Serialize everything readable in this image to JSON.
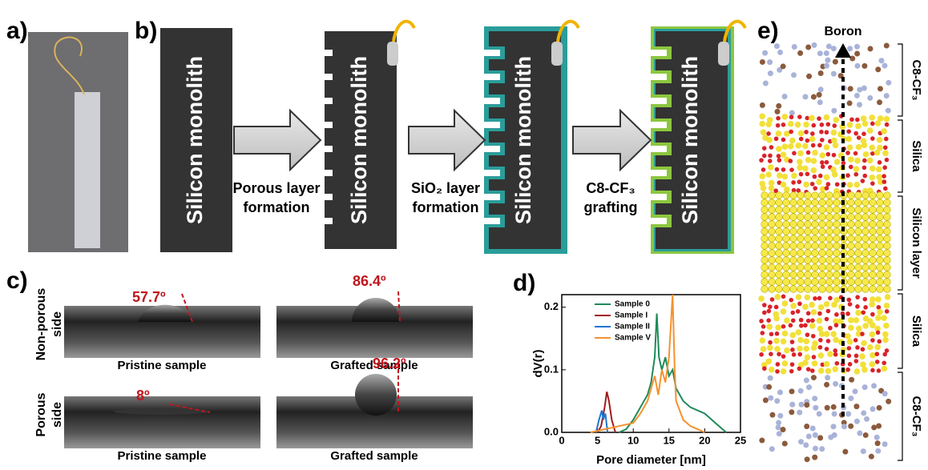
{
  "panels": {
    "a": {
      "label": "a)"
    },
    "b": {
      "label": "b)",
      "monoliths": [
        "Silicon monolith",
        "Silicon monolith",
        "Silicon monolith",
        "Silicon monolith"
      ],
      "steps": [
        [
          "Porous layer",
          "formation"
        ],
        [
          "SiO₂ layer",
          "formation"
        ],
        [
          "C8-CF₃",
          "grafting"
        ]
      ]
    },
    "c": {
      "label": "c)",
      "rows": [
        {
          "side": [
            "Non-porous",
            "side"
          ],
          "images": [
            {
              "angle": "57.7º",
              "caption": "Pristine sample"
            },
            {
              "angle": "86.4º",
              "caption": "Grafted sample"
            }
          ]
        },
        {
          "side": [
            "Porous",
            "side"
          ],
          "images": [
            {
              "angle": "8º",
              "caption": "Pristine sample"
            },
            {
              "angle": "96.2º",
              "caption": "Grafted sample"
            }
          ]
        }
      ]
    },
    "d": {
      "label": "d)",
      "chart": {
        "type": "line",
        "x_label": "Pore diameter  [nm]",
        "y_label": "dV(r)",
        "xlim": [
          0,
          25
        ],
        "ylim": [
          0,
          0.22
        ],
        "xticks": [
          0,
          5,
          10,
          15,
          20,
          25
        ],
        "yticks": [
          {
            "value": 0,
            "label": "0.0"
          },
          {
            "value": 0.1,
            "label": "0.1"
          },
          {
            "value": 0.2,
            "label": "0.2"
          }
        ],
        "series": [
          {
            "name": "Sample 0",
            "color": "#1f8a5a",
            "x": [
              8,
              9,
              10,
              11,
              12,
              12.5,
              13,
              13.3,
              13.6,
              14,
              14.5,
              15,
              15.5,
              16,
              17,
              18,
              19,
              20,
              21,
              22,
              23
            ],
            "values": [
              0,
              0.005,
              0.02,
              0.04,
              0.06,
              0.08,
              0.12,
              0.19,
              0.12,
              0.1,
              0.12,
              0.09,
              0.1,
              0.07,
              0.05,
              0.04,
              0.035,
              0.03,
              0.02,
              0.01,
              0
            ]
          },
          {
            "name": "Sample I",
            "color": "#a31c1c",
            "x": [
              5,
              5.5,
              6,
              6.3,
              6.6,
              7,
              7.5
            ],
            "values": [
              0,
              0.01,
              0.04,
              0.065,
              0.05,
              0.02,
              0
            ]
          },
          {
            "name": "Sample II",
            "color": "#1f77d4",
            "x": [
              4.8,
              5.2,
              5.6,
              5.8,
              6.1,
              6.4
            ],
            "values": [
              0,
              0.02,
              0.035,
              0.02,
              0.03,
              0
            ]
          },
          {
            "name": "Sample V",
            "color": "#f5922e",
            "x": [
              4,
              6,
              8,
              10,
              11,
              12,
              13,
              13.5,
              14,
              14.5,
              15,
              15.5,
              15.8,
              16,
              17,
              18,
              19,
              20
            ],
            "values": [
              0,
              0.005,
              0.01,
              0.015,
              0.03,
              0.05,
              0.09,
              0.06,
              0.1,
              0.08,
              0.12,
              0.22,
              0.1,
              0.05,
              0.02,
              0.01,
              0.005,
              0
            ]
          }
        ]
      }
    },
    "e": {
      "label": "e)",
      "arrow_label": "Boron",
      "layers": [
        "C8-CF₃",
        "Silica",
        "Silicon layer",
        "Silica",
        "C8-CF₃"
      ]
    }
  }
}
